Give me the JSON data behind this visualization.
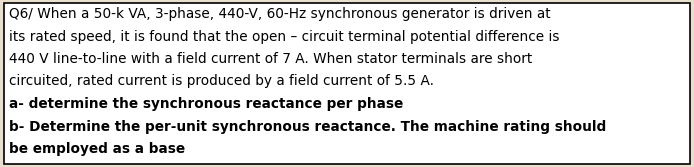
{
  "lines_normal": [
    "Q6/ When a 50-k VA, 3-phase, 440-V, 60-Hz synchronous generator is driven at",
    "its rated speed, it is found that the open – circuit terminal potential difference is",
    "440 V line-to-line with a field current of 7 A. When stator terminals are short",
    "circuited, rated current is produced by a field current of 5.5 A."
  ],
  "lines_bold": [
    "a- determine the synchronous reactance per phase",
    "b- Determine the per-unit synchronous reactance. The machine rating should",
    "be employed as a base"
  ],
  "font_size": 9.8,
  "bg_color": "#e8e0cc",
  "border_color": "#000000",
  "text_color": "#000000",
  "fig_width": 6.94,
  "fig_height": 1.67,
  "dpi": 100
}
